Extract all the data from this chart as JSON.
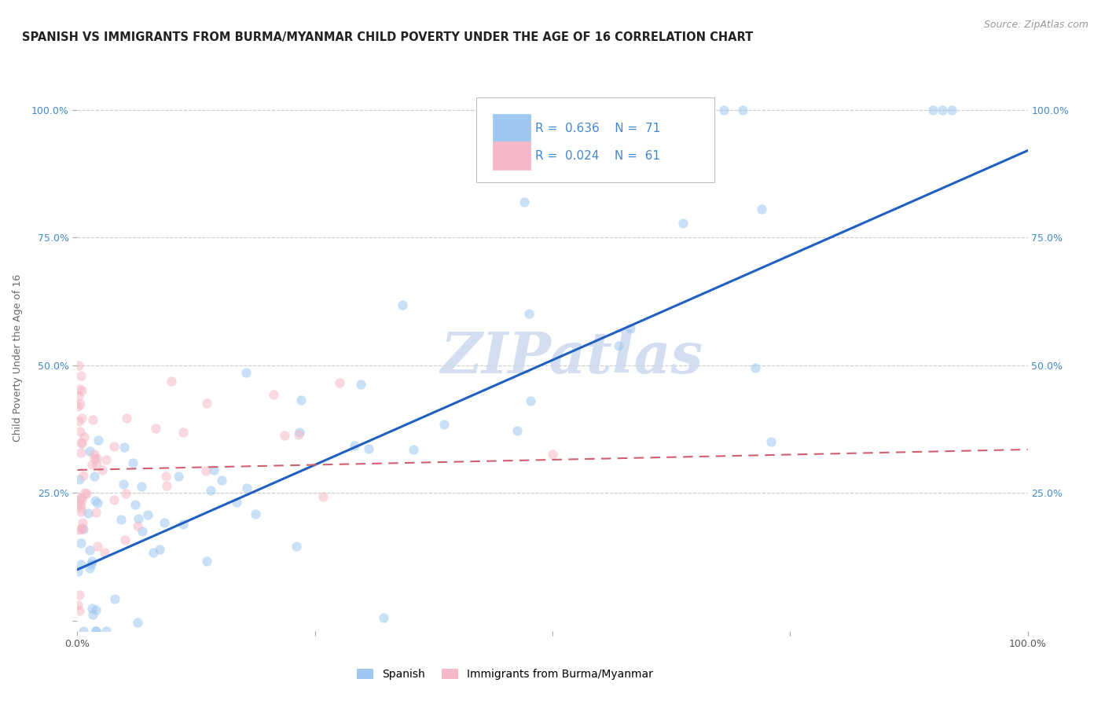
{
  "title": "SPANISH VS IMMIGRANTS FROM BURMA/MYANMAR CHILD POVERTY UNDER THE AGE OF 16 CORRELATION CHART",
  "source": "Source: ZipAtlas.com",
  "ylabel": "Child Poverty Under the Age of 16",
  "xlim": [
    0,
    1
  ],
  "ylim": [
    -0.02,
    1.05
  ],
  "color_spanish": "#9ec8f0",
  "color_burma": "#f5b8c8",
  "color_line_spanish": "#2060c0",
  "color_line_burma": "#d06070",
  "watermark": "ZIPatlas",
  "bottom_legend_spanish": "Spanish",
  "bottom_legend_burma": "Immigrants from Burma/Myanmar",
  "title_fontsize": 10.5,
  "source_fontsize": 9,
  "axis_label_fontsize": 9,
  "tick_fontsize": 9,
  "legend_fontsize": 11,
  "watermark_fontsize": 52,
  "watermark_color": "#c8d8ee",
  "background_color": "#ffffff",
  "grid_color": "#cccccc",
  "scatter_size": 80,
  "scatter_alpha": 0.55,
  "tick_color": "#4488cc",
  "spanish_line_y0": 0.1,
  "spanish_line_y1": 0.92,
  "burma_line_y0": 0.295,
  "burma_line_y1": 0.335
}
